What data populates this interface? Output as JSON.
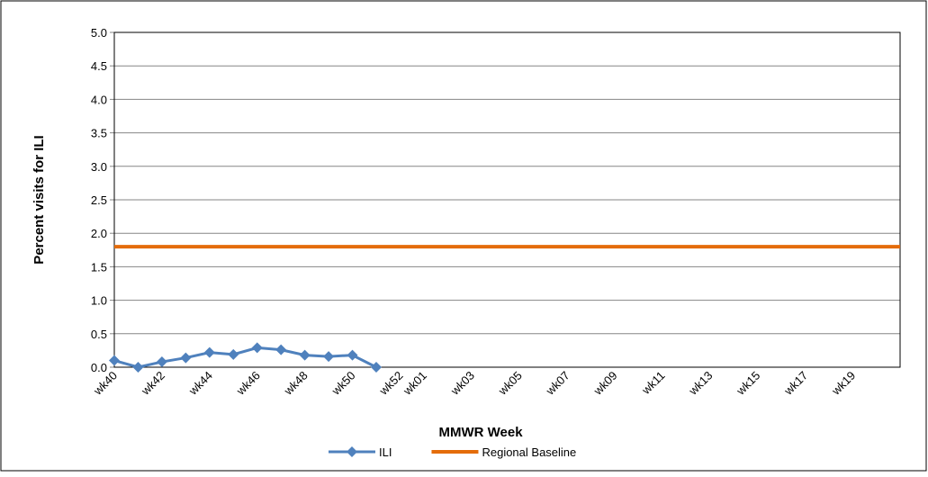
{
  "chart_data": {
    "type": "line",
    "y_label": "Percent visits for ILI",
    "x_label": "MMWR Week",
    "categories": [
      "wk40",
      null,
      "wk42",
      null,
      "wk44",
      null,
      "wk46",
      null,
      "wk48",
      null,
      "wk50",
      null,
      "wk52",
      "wk01",
      null,
      "wk03",
      null,
      "wk05",
      null,
      "wk07",
      null,
      "wk09",
      null,
      "wk11",
      null,
      "wk13",
      null,
      "wk15",
      null,
      "wk17",
      null,
      "wk19",
      null,
      null
    ],
    "series": [
      {
        "name": "ILI",
        "color": "#4f81bd",
        "marker": "diamond",
        "values": [
          0.1,
          0.0,
          0.08,
          0.14,
          0.22,
          0.19,
          0.29,
          0.26,
          0.18,
          0.16,
          0.18,
          0.0,
          null,
          null,
          null,
          null,
          null,
          null,
          null,
          null,
          null,
          null,
          null,
          null,
          null,
          null,
          null,
          null,
          null,
          null,
          null,
          null,
          null,
          null
        ]
      },
      {
        "name": "Regional Baseline",
        "color": "#e46c0a",
        "values": [
          1.8,
          1.8,
          1.8,
          1.8,
          1.8,
          1.8,
          1.8,
          1.8,
          1.8,
          1.8,
          1.8,
          1.8,
          1.8,
          1.8,
          1.8,
          1.8,
          1.8,
          1.8,
          1.8,
          1.8,
          1.8,
          1.8,
          1.8,
          1.8,
          1.8,
          1.8,
          1.8,
          1.8,
          1.8,
          1.8,
          1.8,
          1.8,
          1.8,
          1.8
        ]
      }
    ],
    "ylim": [
      0,
      5
    ],
    "yticks": [
      {
        "value": 0,
        "label": "0.0"
      },
      0.5,
      {
        "value": 1,
        "label": "1.0"
      },
      1.5,
      {
        "value": 2,
        "label": "2.0"
      },
      2.5,
      {
        "value": 3,
        "label": "3.0"
      },
      3.5,
      {
        "value": 4,
        "label": "4.0"
      },
      4.5,
      {
        "value": 5,
        "label": "5.0"
      }
    ],
    "grid": true,
    "legend": "bottom"
  }
}
